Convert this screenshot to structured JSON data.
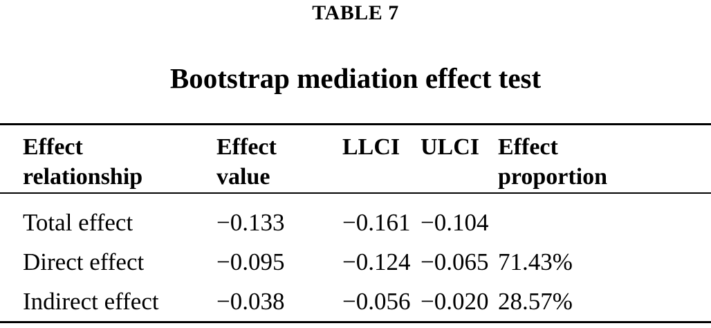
{
  "caption": {
    "label": "TABLE 7",
    "title": "Bootstrap mediation effect test"
  },
  "table": {
    "headers": {
      "effect_relationship": "Effect\nrelationship",
      "effect_value": "Effect\nvalue",
      "llci": "LLCI",
      "ulci": "ULCI",
      "effect_proportion": "Effect\nproportion"
    },
    "rows": [
      {
        "relationship": "Total effect",
        "effect_value": "−0.133",
        "llci": "−0.161",
        "ulci": "−0.104",
        "proportion": ""
      },
      {
        "relationship": "Direct effect",
        "effect_value": "−0.095",
        "llci": "−0.124",
        "ulci": "−0.065",
        "proportion": "71.43%"
      },
      {
        "relationship": "Indirect effect",
        "effect_value": "−0.038",
        "llci": "−0.056",
        "ulci": "−0.020",
        "proportion": "28.57%"
      }
    ]
  },
  "colors": {
    "text": "#000000",
    "background": "#ffffff",
    "rule": "#000000"
  }
}
